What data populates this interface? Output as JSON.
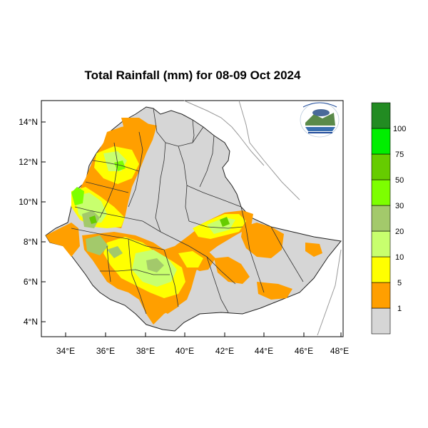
{
  "title": "Total Rainfall (mm) for 08-09 Oct 2024",
  "map": {
    "region": "Ethiopia",
    "lon_range": [
      33,
      48
    ],
    "lat_range": [
      3,
      15
    ],
    "x_ticks": [
      "34°E",
      "36°E",
      "38°E",
      "40°E",
      "42°E",
      "44°E",
      "46°E",
      "48°E"
    ],
    "y_ticks": [
      "14°N",
      "12°N",
      "10°N",
      "8°N",
      "6°N",
      "4°N"
    ],
    "colors": {
      "no_rain": "#d6d6d6",
      "c1": "#ff9f00",
      "c5": "#ffff00",
      "c10": "#c8ff6e",
      "c20": "#a3c96b",
      "c30": "#7dff00",
      "c50": "#66cc00",
      "c75": "#00ee00",
      "c100": "#228b22",
      "border": "#222222",
      "neighbor": "#999999"
    }
  },
  "legend": {
    "labels": [
      "1",
      "5",
      "10",
      "20",
      "30",
      "50",
      "75",
      "100"
    ],
    "bins": [
      "#d6d6d6",
      "#ff9f00",
      "#ffff00",
      "#c8ff6e",
      "#a3c96b",
      "#7dff00",
      "#66cc00",
      "#00ee00",
      "#228b22"
    ]
  }
}
